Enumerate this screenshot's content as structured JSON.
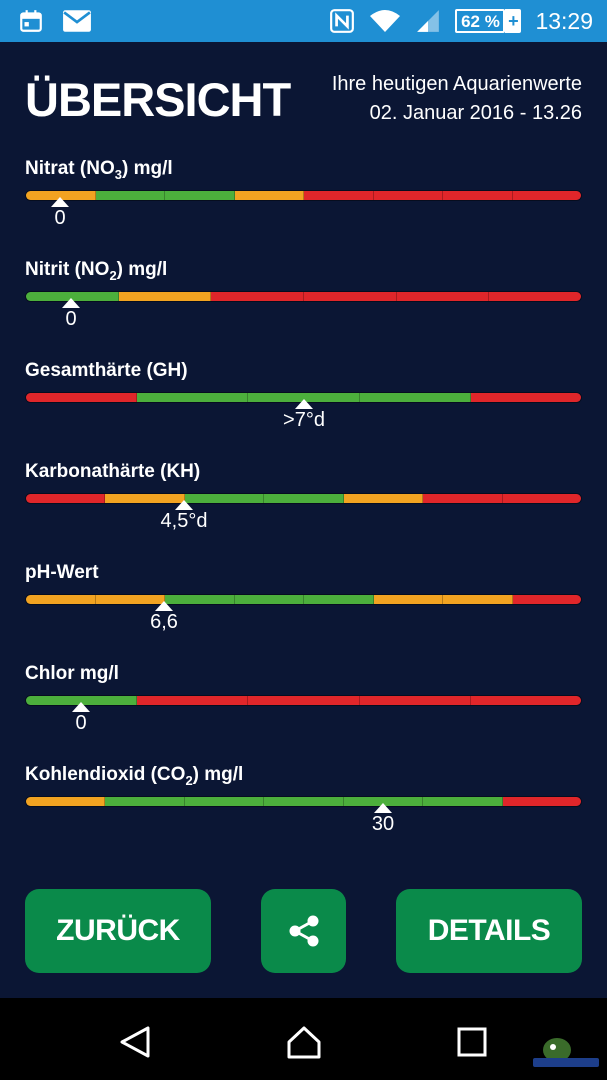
{
  "statusbar": {
    "battery": "62 %",
    "battery_level": 0.62,
    "time": "13:29",
    "icons": [
      "calendar-icon",
      "mail-icon",
      "nfc-icon",
      "wifi-icon",
      "signal-icon",
      "battery-icon"
    ]
  },
  "header": {
    "title": "ÜBERSICHT",
    "subtitle_line1": "Ihre heutigen Aquarienwerte",
    "subtitle_line2": "02. Januar 2016 - 13.26"
  },
  "colors": {
    "green": "#4caf3c",
    "orange": "#f2a321",
    "red": "#e0262a",
    "background": "#0b1634",
    "button": "#0a8a4a",
    "statusbar": "#1f8fd3"
  },
  "parameters": [
    {
      "label": "Nitrat (NO",
      "sub": "3",
      "label_after": ") mg/l",
      "value": "0",
      "marker_fraction": 0.063,
      "segments": [
        "orange",
        "green",
        "green",
        "orange",
        "red",
        "red",
        "red",
        "red"
      ]
    },
    {
      "label": "Nitrit (NO",
      "sub": "2",
      "label_after": ") mg/l",
      "value": "0",
      "marker_fraction": 0.083,
      "segments": [
        "green",
        "orange",
        "red",
        "red",
        "red",
        "red"
      ]
    },
    {
      "label": "Gesamthärte (GH)",
      "sub": "",
      "label_after": "",
      "value": ">7°d",
      "marker_fraction": 0.5,
      "segments": [
        "red",
        "green",
        "green",
        "green",
        "red"
      ]
    },
    {
      "label": "Karbonathärte (KH)",
      "sub": "",
      "label_after": "",
      "value": "4,5°d",
      "marker_fraction": 0.286,
      "segments": [
        "red",
        "orange",
        "green",
        "green",
        "orange",
        "red",
        "red"
      ]
    },
    {
      "label": "pH-Wert",
      "sub": "",
      "label_after": "",
      "value": "6,6",
      "marker_fraction": 0.25,
      "segments": [
        "orange",
        "orange",
        "green",
        "green",
        "green",
        "orange",
        "orange",
        "red"
      ]
    },
    {
      "label": "Chlor mg/l",
      "sub": "",
      "label_after": "",
      "value": "0",
      "marker_fraction": 0.1,
      "segments": [
        "green",
        "red",
        "red",
        "red",
        "red"
      ]
    },
    {
      "label": "Kohlendioxid (CO",
      "sub": "2",
      "label_after": ") mg/l",
      "value": "30",
      "marker_fraction": 0.643,
      "segments": [
        "orange",
        "green",
        "green",
        "green",
        "green",
        "green",
        "red"
      ]
    }
  ],
  "buttons": {
    "back": "ZURÜCK",
    "share_icon": "share-icon",
    "details": "DETAILS"
  },
  "navbar": {
    "icons": [
      "back-triangle-icon",
      "home-icon",
      "recents-icon"
    ]
  }
}
